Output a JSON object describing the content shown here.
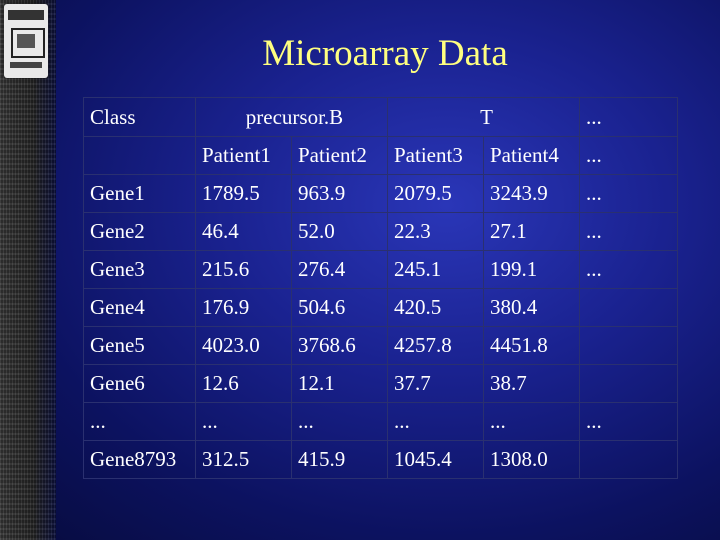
{
  "title": "Microarray Data",
  "header": {
    "class_label": "Class",
    "group_b": "precursor.B",
    "group_t": "T",
    "group_more": "...",
    "patients": [
      "Patient1",
      "Patient2",
      "Patient3",
      "Patient4",
      "..."
    ]
  },
  "rows": [
    {
      "gene": "Gene1",
      "values": [
        "1789.5",
        "963.9",
        "2079.5",
        "3243.9",
        "..."
      ]
    },
    {
      "gene": "Gene2",
      "values": [
        "46.4",
        "52.0",
        "22.3",
        "27.1",
        "..."
      ]
    },
    {
      "gene": "Gene3",
      "values": [
        "215.6",
        "276.4",
        "245.1",
        "199.1",
        "..."
      ]
    },
    {
      "gene": "Gene4",
      "values": [
        "176.9",
        "504.6",
        "420.5",
        "380.4",
        ""
      ]
    },
    {
      "gene": "Gene5",
      "values": [
        "4023.0",
        "3768.6",
        "4257.8",
        "4451.8",
        ""
      ]
    },
    {
      "gene": "Gene6",
      "values": [
        "12.6",
        "12.1",
        "37.7",
        "38.7",
        ""
      ]
    },
    {
      "gene": "...",
      "values": [
        "...",
        "...",
        "...",
        "...",
        "..."
      ]
    },
    {
      "gene": "Gene8793",
      "values": [
        "312.5",
        "415.9",
        "1045.4",
        "1308.0",
        ""
      ]
    }
  ]
}
